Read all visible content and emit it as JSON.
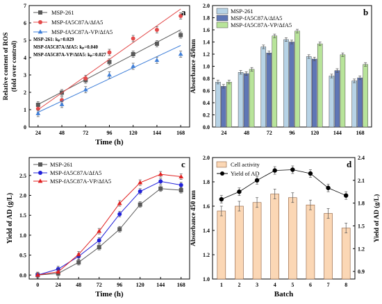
{
  "figure": {
    "panels": [
      "a",
      "b",
      "c",
      "d"
    ]
  },
  "chart_data": [
    {
      "panel": "a",
      "type": "scatter",
      "xlabel": "Time (h)",
      "ylabel": "Relative content of ROS (fold over control)",
      "ylabel_lines": [
        "Relative content of ROS",
        "(fold over control)"
      ],
      "x": [
        24,
        48,
        72,
        96,
        120,
        144,
        168
      ],
      "xlim": [
        15,
        177
      ],
      "ylim": [
        0,
        7
      ],
      "yticks": [
        0,
        1,
        2,
        3,
        4,
        5,
        6,
        7
      ],
      "grid": false,
      "legend_position": "top-left",
      "series": [
        {
          "name": "MSP-261",
          "marker": "square",
          "color": "#595959",
          "values": [
            1.28,
            1.98,
            2.7,
            3.75,
            4.2,
            4.8,
            5.3
          ],
          "fit": [
            1.3,
            5.6
          ]
        },
        {
          "name": "MSP-fA5C87A/ΔfA5",
          "marker": "circle",
          "color": "#e34a4a",
          "values": [
            1.05,
            1.55,
            2.8,
            4.3,
            5.1,
            5.6,
            6.4
          ],
          "fit": [
            1.0,
            6.8
          ]
        },
        {
          "name": "MSP-fA5C87A-VP/ΔfA5",
          "marker": "triangle",
          "color": "#3f7fd9",
          "values": [
            0.78,
            1.3,
            2.15,
            3.0,
            3.5,
            3.85,
            4.2
          ],
          "fit": [
            0.85,
            4.7
          ]
        }
      ],
      "annotations": [
        "MSP-261: kₚ=0.029",
        "MSP-fA5C87A/ΔfA5: kₚ=0.040",
        "MSP-fA5C87A-VP/ΔfA5: kₚ=0.027"
      ]
    },
    {
      "panel": "b",
      "type": "bar",
      "xlabel": "",
      "ylabel": "Absorbance 450nm",
      "categories": [
        "24",
        "48",
        "72",
        "96",
        "120",
        "144",
        "168"
      ],
      "ylim": [
        0,
        2.0
      ],
      "yticks": [
        0.0,
        0.2,
        0.4,
        0.6,
        0.8,
        1.0,
        1.2,
        1.4,
        1.6,
        1.8,
        2.0
      ],
      "grid": false,
      "legend_position": "top-left",
      "series": [
        {
          "name": "MSP-261",
          "color": "#b7d3e6",
          "values": [
            0.74,
            0.9,
            1.32,
            1.44,
            1.16,
            0.84,
            0.76
          ]
        },
        {
          "name": "MSP-fA5C87A/ΔfA5",
          "color": "#5f76b5",
          "values": [
            0.67,
            0.88,
            1.22,
            1.4,
            1.12,
            0.93,
            0.81
          ]
        },
        {
          "name": "MSP-fA5C87A-VP/ΔfA5",
          "color": "#b8e49a",
          "values": [
            0.74,
            0.95,
            1.5,
            1.58,
            1.37,
            1.19,
            1.03
          ]
        }
      ]
    },
    {
      "panel": "c",
      "type": "line",
      "xlabel": "Time (h)",
      "ylabel": "Yield of AD (g/L)",
      "x": [
        0,
        24,
        48,
        72,
        96,
        120,
        144,
        168
      ],
      "xticks": [
        0,
        24,
        48,
        72,
        96,
        120,
        144,
        168
      ],
      "xlim": [
        -10,
        178
      ],
      "ylim": [
        -0.1,
        2.95
      ],
      "yticks": [
        0.0,
        0.5,
        1.0,
        1.5,
        2.0,
        2.5
      ],
      "grid": false,
      "legend_position": "top-left",
      "series": [
        {
          "name": "MSP-261",
          "marker": "square",
          "color": "#595959",
          "values": [
            0.0,
            0.04,
            0.32,
            0.7,
            1.15,
            1.77,
            2.17,
            2.13
          ]
        },
        {
          "name": "MSP-fA5C87A/ΔfA5",
          "marker": "circle",
          "color": "#2020d8",
          "values": [
            0.0,
            0.15,
            0.47,
            0.87,
            1.53,
            2.1,
            2.35,
            2.26
          ]
        },
        {
          "name": "MSP-fA5C87A-VP/ΔfA5",
          "marker": "triangle",
          "color": "#e01f1f",
          "values": [
            0.0,
            0.08,
            0.52,
            1.1,
            1.8,
            2.32,
            2.53,
            2.47
          ]
        }
      ]
    },
    {
      "panel": "d",
      "type": "bar",
      "xlabel": "Batch",
      "ylabel": "Absorbance 450 nm",
      "y2label": "Yield of AD (g/L)",
      "categories": [
        "1",
        "2",
        "3",
        "4",
        "5",
        "6",
        "7",
        "8"
      ],
      "ylim": [
        1.0,
        2.0
      ],
      "yticks": [
        1.0,
        1.2,
        1.4,
        1.6,
        1.8,
        2.0
      ],
      "y2lim": [
        0.8,
        2.4
      ],
      "y2ticks": [
        0.9,
        1.2,
        1.5,
        1.8,
        2.1,
        2.4
      ],
      "grid": false,
      "legend_position": "top-left",
      "series": [
        {
          "name": "Cell activity",
          "kind": "bar",
          "color": "#fbd7b5",
          "values": [
            1.56,
            1.6,
            1.63,
            1.7,
            1.67,
            1.61,
            1.54,
            1.42
          ]
        },
        {
          "name": "Yield of AD",
          "kind": "line",
          "axis": "right",
          "color": "#000000",
          "values": [
            1.85,
            1.95,
            2.1,
            2.23,
            2.24,
            2.19,
            2.0,
            1.9
          ]
        }
      ]
    }
  ]
}
